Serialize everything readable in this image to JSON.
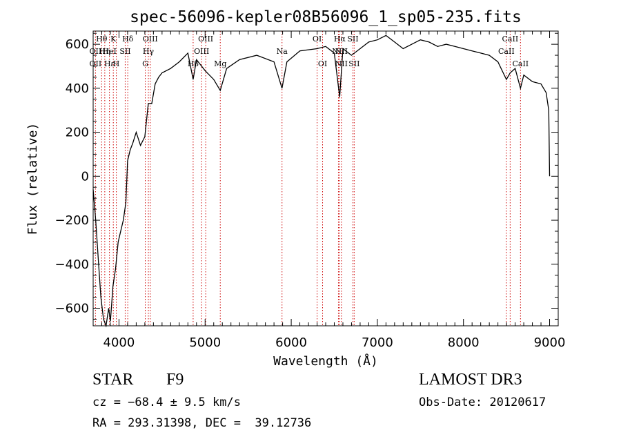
{
  "chart_data": {
    "type": "line",
    "title": "spec-56096-kepler08B56096_1_sp05-235.fits",
    "xlabel": "Wavelength (Å)",
    "ylabel": "Flux (relative)",
    "xlim": [
      3700,
      9100
    ],
    "ylim": [
      -680,
      660
    ],
    "xticks": [
      4000,
      5000,
      6000,
      7000,
      8000,
      9000
    ],
    "yticks": [
      -600,
      -400,
      -200,
      0,
      200,
      400,
      600
    ],
    "grid": false,
    "line_color": "#000000",
    "marker_color": "#cc0000",
    "series": [
      {
        "x": [
          3700,
          3730,
          3760,
          3790,
          3820,
          3850,
          3880,
          3900,
          3930,
          3960,
          3990,
          4020,
          4050,
          4080,
          4100,
          4130,
          4160,
          4200,
          4250,
          4300,
          4340,
          4380,
          4420,
          4460,
          4500,
          4600,
          4700,
          4800,
          4861,
          4900,
          5000,
          5100,
          5176,
          5250,
          5400,
          5600,
          5800,
          5893,
          5950,
          6100,
          6300,
          6400,
          6500,
          6563,
          6600,
          6700,
          6800,
          6900,
          7000,
          7100,
          7200,
          7300,
          7400,
          7500,
          7600,
          7700,
          7800,
          7900,
          8000,
          8100,
          8200,
          8300,
          8400,
          8498,
          8542,
          8600,
          8662,
          8700,
          8800,
          8900,
          8960,
          8990,
          9000
        ],
        "y": [
          -60,
          -200,
          -380,
          -550,
          -650,
          -680,
          -600,
          -660,
          -500,
          -420,
          -300,
          -250,
          -200,
          -120,
          70,
          120,
          150,
          200,
          140,
          180,
          330,
          330,
          420,
          450,
          470,
          490,
          520,
          560,
          440,
          530,
          480,
          440,
          390,
          490,
          530,
          550,
          520,
          400,
          520,
          570,
          580,
          590,
          560,
          360,
          580,
          550,
          580,
          610,
          620,
          640,
          610,
          580,
          600,
          620,
          610,
          590,
          600,
          590,
          580,
          570,
          560,
          550,
          520,
          440,
          470,
          490,
          400,
          460,
          430,
          420,
          380,
          300,
          0
        ]
      }
    ],
    "line_markers": [
      {
        "label": "Hθ",
        "x": 3798,
        "row": 0
      },
      {
        "label": "OII",
        "x": 3727,
        "row": 1
      },
      {
        "label": "OII",
        "x": 3727,
        "row": 2
      },
      {
        "label": "Hη",
        "x": 3835,
        "row": 1
      },
      {
        "label": "Hε",
        "x": 3889,
        "row": 2
      },
      {
        "label": "K",
        "x": 3934,
        "row": 0
      },
      {
        "label": "HeI",
        "x": 3889,
        "row": 1
      },
      {
        "label": "H",
        "x": 3969,
        "row": 2
      },
      {
        "label": "Hδ",
        "x": 4102,
        "row": 0
      },
      {
        "label": "SII",
        "x": 4072,
        "row": 1
      },
      {
        "label": "OIII",
        "x": 4363,
        "row": 0
      },
      {
        "label": "Hγ",
        "x": 4341,
        "row": 1
      },
      {
        "label": "G",
        "x": 4305,
        "row": 2
      },
      {
        "label": "OIII",
        "x": 5007,
        "row": 0
      },
      {
        "label": "OIII",
        "x": 4959,
        "row": 1
      },
      {
        "label": "Hβ",
        "x": 4861,
        "row": 2
      },
      {
        "label": "Mg",
        "x": 5176,
        "row": 2
      },
      {
        "label": "Na",
        "x": 5893,
        "row": 1
      },
      {
        "label": "OI",
        "x": 6300,
        "row": 0
      },
      {
        "label": "OI",
        "x": 6364,
        "row": 2
      },
      {
        "label": "Hα",
        "x": 6563,
        "row": 0
      },
      {
        "label": "SII",
        "x": 6716,
        "row": 0
      },
      {
        "label": "NII",
        "x": 6548,
        "row": 1
      },
      {
        "label": "NII",
        "x": 6583,
        "row": 1
      },
      {
        "label": "NII",
        "x": 6583,
        "row": 2
      },
      {
        "label": "SII",
        "x": 6731,
        "row": 2
      },
      {
        "label": "CaII",
        "x": 8542,
        "row": 0
      },
      {
        "label": "CaII",
        "x": 8498,
        "row": 1
      },
      {
        "label": "CaII",
        "x": 8662,
        "row": 2
      }
    ],
    "marker_lines": [
      3727,
      3798,
      3835,
      3889,
      3934,
      3969,
      4072,
      4102,
      4305,
      4341,
      4363,
      4861,
      4959,
      5007,
      5176,
      5893,
      6300,
      6364,
      6548,
      6563,
      6583,
      6716,
      6731,
      8498,
      8542,
      8662
    ]
  },
  "info": {
    "class": "STAR",
    "subclass": "F9",
    "survey": "LAMOST DR3",
    "cz": "cz = −68.4 ± 9.5 km/s",
    "obs_date": "Obs-Date: 20120617",
    "coords": "RA = 293.31398, DEC =  39.12736"
  }
}
